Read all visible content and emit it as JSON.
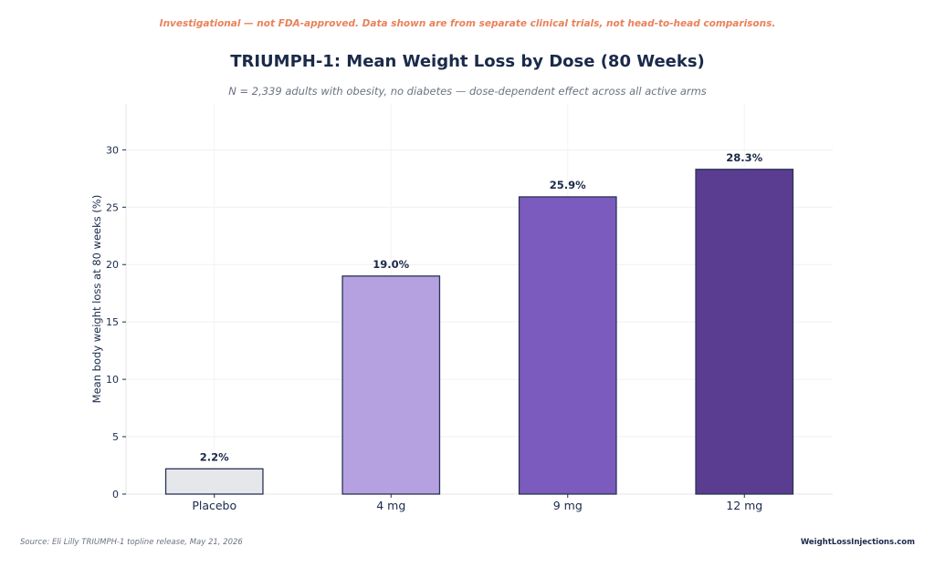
{
  "header": {
    "disclaimer": "Investigational — not FDA-approved. Data shown are from separate clinical trials, not head-to-head comparisons.",
    "title": "TRIUMPH-1: Mean Weight Loss by Dose (80 Weeks)",
    "subtitle": "N = 2,339 adults with obesity, no diabetes — dose-dependent effect across all active arms"
  },
  "footer": {
    "source": "Source: Eli Lilly TRIUMPH-1 topline release, May 21, 2026",
    "brand": "WeightLossInjections.com"
  },
  "chart_data": {
    "type": "bar",
    "categories": [
      "Placebo",
      "4 mg",
      "9 mg",
      "12 mg"
    ],
    "values": [
      2.2,
      19.0,
      25.9,
      28.3
    ],
    "value_labels": [
      "2.2%",
      "19.0%",
      "25.9%",
      "28.3%"
    ],
    "colors": [
      "#e5e7eb",
      "#b5a1e0",
      "#7b5bbd",
      "#5a3d91"
    ],
    "edge_color": "#2a3355",
    "title": "TRIUMPH-1: Mean Weight Loss by Dose (80 Weeks)",
    "xlabel": "",
    "ylabel": "Mean body weight loss at 80 weeks (%)",
    "ylim": [
      0,
      34
    ],
    "yticks": [
      0,
      5,
      10,
      15,
      20,
      25,
      30
    ],
    "grid": true
  }
}
